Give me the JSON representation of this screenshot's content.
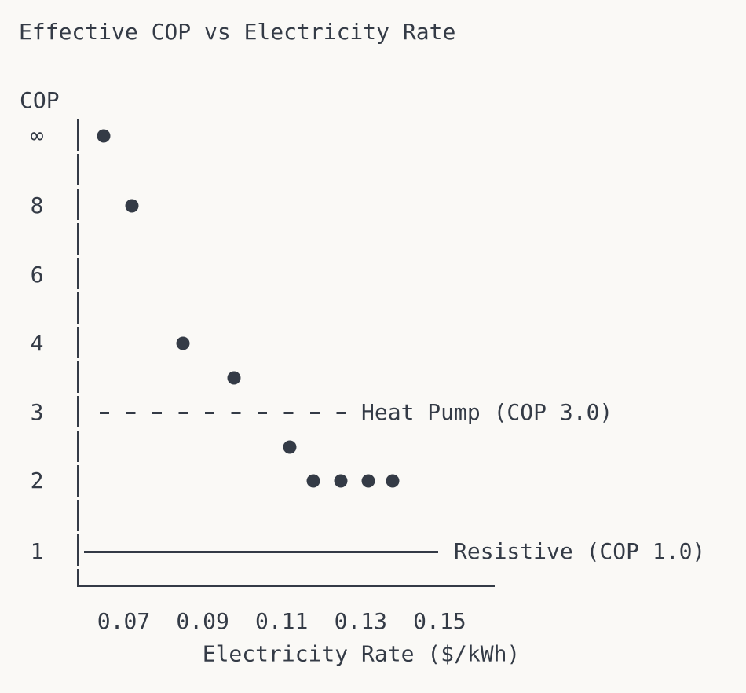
{
  "title": "Effective COP vs Electricity Rate",
  "axes": {
    "y_label": "COP",
    "x_label": "Electricity Rate ($/kWh)",
    "y_ticks": [
      "∞",
      "8",
      "6",
      "4",
      "3",
      "2",
      "1"
    ],
    "x_ticks": [
      "0.07",
      "0.09",
      "0.11",
      "0.13",
      "0.15"
    ]
  },
  "chart_data": {
    "type": "scatter",
    "title": "Effective COP vs Electricity Rate",
    "xlabel": "Electricity Rate ($/kWh)",
    "ylabel": "COP",
    "x_ticks": [
      0.07,
      0.09,
      0.11,
      0.13,
      0.15
    ],
    "y_ticks": [
      "∞",
      8,
      6,
      4,
      3,
      2,
      1
    ],
    "y_scale": "nonlinear-ordinal-rows",
    "grid": false,
    "points": [
      {
        "x": 0.065,
        "y": "∞"
      },
      {
        "x": 0.072,
        "y": 8
      },
      {
        "x": 0.085,
        "y": 4
      },
      {
        "x": 0.098,
        "y": 3.5
      },
      {
        "x": 0.112,
        "y": 2.5
      },
      {
        "x": 0.118,
        "y": 2
      },
      {
        "x": 0.125,
        "y": 2
      },
      {
        "x": 0.132,
        "y": 2
      },
      {
        "x": 0.138,
        "y": 2
      }
    ],
    "reference_lines": [
      {
        "name": "heat-pump",
        "label": "Heat Pump (COP 3.0)",
        "y": 3.0,
        "style": "dashed"
      },
      {
        "name": "resistive",
        "label": "Resistive (COP 1.0)",
        "y": 1.0,
        "style": "solid"
      }
    ]
  },
  "colors": {
    "background": "#faf9f6",
    "ink": "#343b46"
  }
}
